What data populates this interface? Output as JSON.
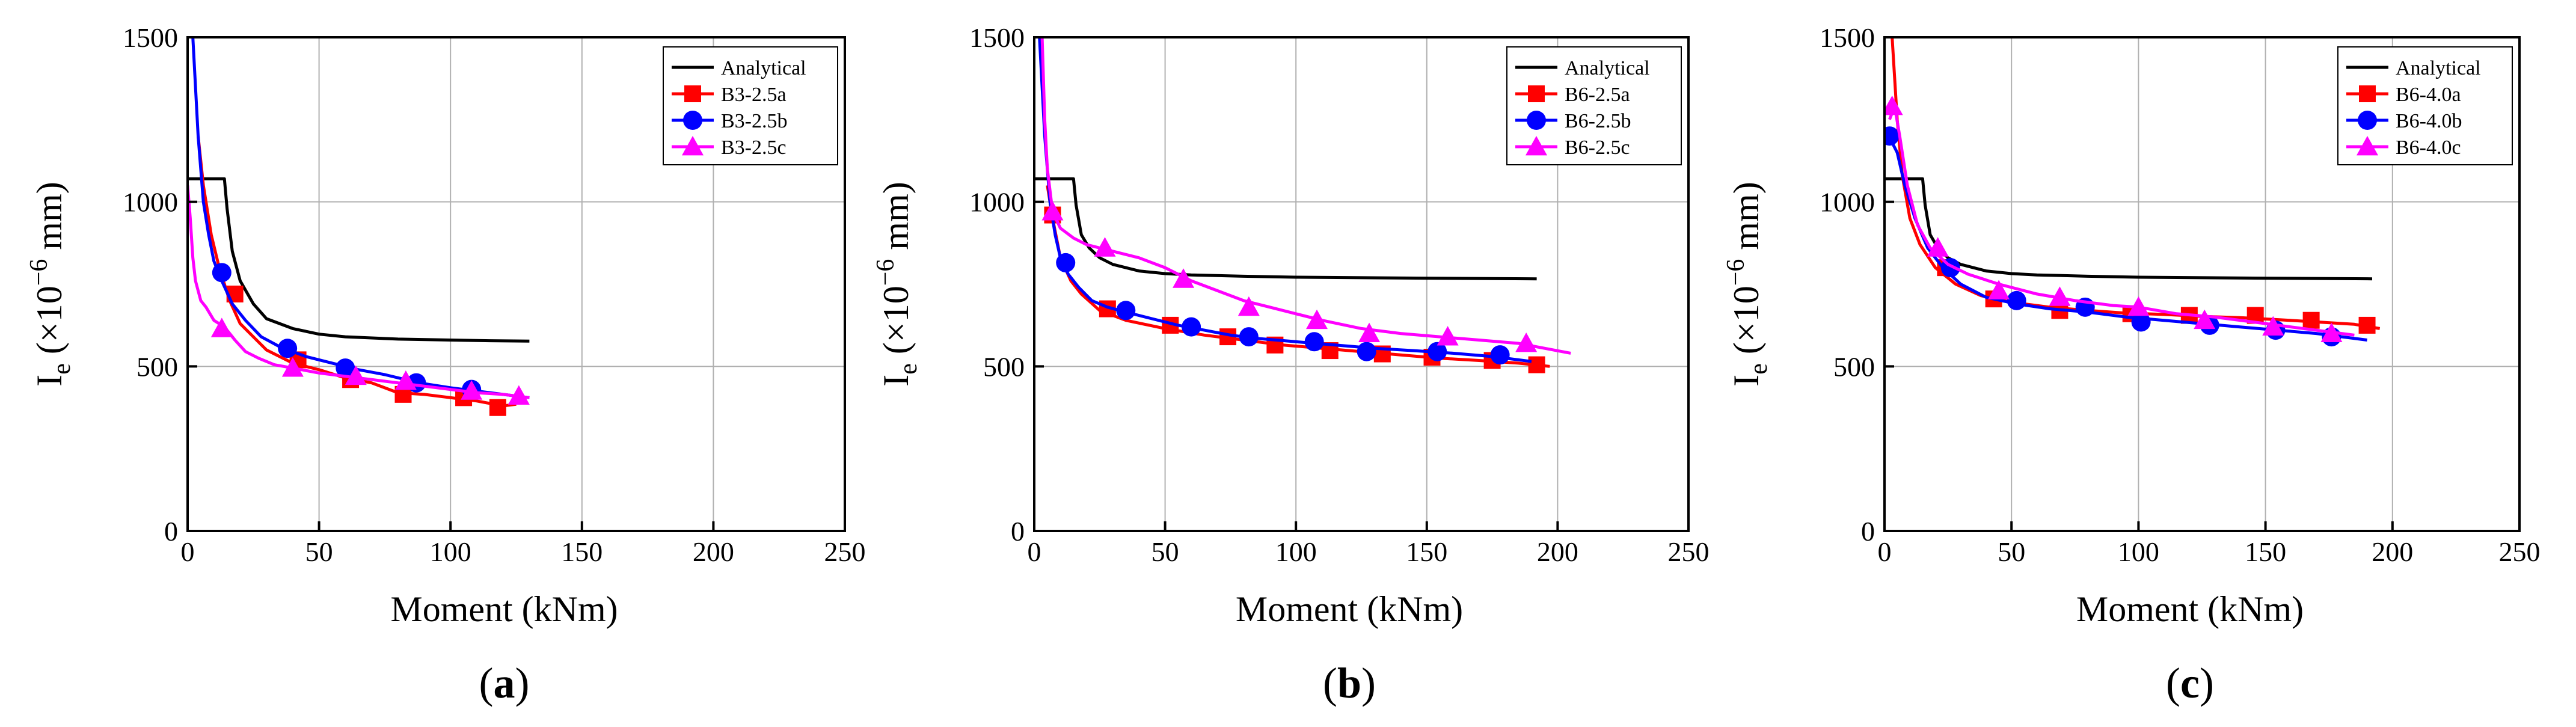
{
  "chart_data": [
    {
      "type": "line",
      "panel_label": "(a)",
      "panel_letter": "a",
      "xlabel": "Moment (kNm)",
      "ylabel": "I",
      "ylabel_sub": "e",
      "ylabel_rest": " (×10",
      "ylabel_sup": "−6",
      "ylabel_unit": " mm)",
      "xlim": [
        0,
        250
      ],
      "ylim": [
        0,
        1500
      ],
      "xticks": [
        0,
        50,
        100,
        150,
        200,
        250
      ],
      "yticks": [
        0,
        500,
        1000,
        1500
      ],
      "grid": true,
      "legend_position": "top-right",
      "series": [
        {
          "name": "Analytical",
          "color": "#000000",
          "marker": "none",
          "x": [
            0,
            14,
            15,
            17,
            20,
            25,
            30,
            40,
            50,
            60,
            80,
            100,
            115,
            130
          ],
          "y": [
            1070,
            1070,
            980,
            850,
            760,
            690,
            645,
            615,
            598,
            590,
            583,
            580,
            578,
            577
          ]
        },
        {
          "name": "B3-2.5a",
          "color": "#ff0000",
          "marker": "square",
          "x": [
            4,
            6,
            9,
            12,
            16,
            20,
            25,
            30,
            40,
            50,
            60,
            70,
            80,
            90,
            100,
            110,
            120,
            125
          ],
          "y": [
            1200,
            1050,
            900,
            800,
            700,
            630,
            590,
            550,
            510,
            490,
            465,
            450,
            420,
            415,
            405,
            395,
            380,
            385
          ],
          "marker_x": [
            18,
            42,
            62,
            82,
            105,
            118
          ],
          "marker_y": [
            720,
            520,
            460,
            415,
            405,
            375
          ]
        },
        {
          "name": "B3-2.5b",
          "color": "#0000ff",
          "marker": "circle",
          "x": [
            2,
            4,
            6,
            8,
            10,
            13,
            17,
            22,
            28,
            35,
            45,
            55,
            65,
            75,
            88,
            100,
            110,
            120,
            130
          ],
          "y": [
            1500,
            1200,
            1000,
            900,
            820,
            760,
            690,
            640,
            590,
            560,
            530,
            510,
            490,
            475,
            450,
            435,
            425,
            415,
            405
          ],
          "marker_x": [
            13,
            38,
            60,
            87,
            108
          ],
          "marker_y": [
            785,
            555,
            495,
            450,
            430
          ]
        },
        {
          "name": "B3-2.5c",
          "color": "#ff00ff",
          "marker": "triangle",
          "x": [
            0,
            1,
            2,
            3,
            5,
            7,
            10,
            14,
            18,
            22,
            27,
            33,
            40,
            50,
            60,
            70,
            80,
            90,
            100,
            110,
            120,
            130
          ],
          "y": [
            1050,
            950,
            830,
            760,
            700,
            680,
            640,
            620,
            580,
            545,
            525,
            505,
            495,
            480,
            470,
            460,
            450,
            440,
            430,
            420,
            415,
            405
          ],
          "marker_x": [
            13,
            40,
            64,
            83,
            108,
            126
          ],
          "marker_y": [
            615,
            495,
            470,
            455,
            425,
            410
          ]
        }
      ]
    },
    {
      "type": "line",
      "panel_label": "(b)",
      "panel_letter": "b",
      "xlabel": "Moment (kNm)",
      "ylabel": "I",
      "ylabel_sub": "e",
      "ylabel_rest": " (×10",
      "ylabel_sup": "−6",
      "ylabel_unit": " mm)",
      "xlim": [
        0,
        250
      ],
      "ylim": [
        0,
        1500
      ],
      "xticks": [
        0,
        50,
        100,
        150,
        200,
        250
      ],
      "yticks": [
        0,
        500,
        1000,
        1500
      ],
      "grid": true,
      "legend_position": "top-right",
      "series": [
        {
          "name": "Analytical",
          "color": "#000000",
          "marker": "none",
          "x": [
            0,
            15,
            16,
            18,
            21,
            25,
            30,
            40,
            50,
            60,
            80,
            100,
            150,
            192
          ],
          "y": [
            1070,
            1070,
            990,
            900,
            860,
            830,
            810,
            790,
            782,
            778,
            774,
            771,
            768,
            766
          ]
        },
        {
          "name": "B6-2.5a",
          "color": "#ff0000",
          "marker": "square",
          "x": [
            5,
            7,
            10,
            14,
            18,
            25,
            35,
            50,
            65,
            80,
            95,
            110,
            125,
            140,
            155,
            170,
            185,
            197
          ],
          "y": [
            1050,
            950,
            830,
            760,
            720,
            670,
            640,
            615,
            595,
            580,
            565,
            555,
            545,
            535,
            525,
            518,
            510,
            500
          ],
          "marker_x": [
            7,
            28,
            52,
            74,
            92,
            113,
            133,
            152,
            175,
            192
          ],
          "marker_y": [
            960,
            675,
            625,
            590,
            565,
            548,
            538,
            528,
            518,
            505
          ]
        },
        {
          "name": "B6-2.5b",
          "color": "#0000ff",
          "marker": "circle",
          "x": [
            2,
            4,
            6,
            8,
            10,
            13,
            17,
            22,
            28,
            35,
            45,
            55,
            65,
            75,
            85,
            100,
            115,
            130,
            145,
            160,
            175,
            190
          ],
          "y": [
            1500,
            1200,
            1000,
            900,
            830,
            780,
            740,
            700,
            680,
            665,
            645,
            625,
            610,
            595,
            585,
            575,
            565,
            555,
            548,
            540,
            530,
            515
          ],
          "marker_x": [
            12,
            35,
            60,
            82,
            107,
            127,
            154,
            178
          ],
          "marker_y": [
            815,
            670,
            620,
            590,
            575,
            545,
            545,
            535
          ]
        },
        {
          "name": "B6-2.5c",
          "color": "#ff00ff",
          "marker": "triangle",
          "x": [
            3,
            4,
            5,
            7,
            10,
            15,
            20,
            30,
            40,
            50,
            60,
            70,
            80,
            90,
            100,
            110,
            125,
            140,
            155,
            170,
            185,
            195,
            205
          ],
          "y": [
            1500,
            1250,
            1100,
            970,
            920,
            890,
            870,
            850,
            830,
            800,
            760,
            730,
            700,
            680,
            660,
            640,
            615,
            600,
            590,
            580,
            570,
            555,
            540
          ],
          "marker_x": [
            7,
            27,
            57,
            82,
            108,
            128,
            158,
            188
          ],
          "marker_y": [
            970,
            860,
            765,
            680,
            640,
            600,
            590,
            570
          ]
        }
      ]
    },
    {
      "type": "line",
      "panel_label": "(c)",
      "panel_letter": "c",
      "xlabel": "Moment (kNm)",
      "ylabel": "I",
      "ylabel_sub": "e",
      "ylabel_rest": " (×10",
      "ylabel_sup": "−6",
      "ylabel_unit": " mm)",
      "xlim": [
        0,
        250
      ],
      "ylim": [
        0,
        1500
      ],
      "xticks": [
        0,
        50,
        100,
        150,
        200,
        250
      ],
      "yticks": [
        0,
        500,
        1000,
        1500
      ],
      "grid": true,
      "legend_position": "top-right",
      "series": [
        {
          "name": "Analytical",
          "color": "#000000",
          "marker": "none",
          "x": [
            0,
            15,
            16,
            18,
            21,
            25,
            30,
            40,
            50,
            60,
            80,
            100,
            150,
            192
          ],
          "y": [
            1070,
            1070,
            990,
            900,
            860,
            830,
            810,
            790,
            782,
            778,
            774,
            771,
            768,
            766
          ]
        },
        {
          "name": "B6-4.0a",
          "color": "#ff0000",
          "marker": "square",
          "x": [
            3,
            5,
            7,
            10,
            14,
            20,
            28,
            38,
            50,
            65,
            80,
            95,
            110,
            125,
            140,
            155,
            170,
            185,
            195
          ],
          "y": [
            1500,
            1250,
            1080,
            950,
            870,
            800,
            750,
            715,
            695,
            680,
            670,
            662,
            658,
            652,
            648,
            642,
            635,
            628,
            615
          ],
          "marker_x": [
            24,
            43,
            69,
            97,
            120,
            146,
            168,
            190
          ],
          "marker_y": [
            800,
            705,
            670,
            660,
            655,
            655,
            640,
            625
          ]
        },
        {
          "name": "B6-4.0b",
          "color": "#0000ff",
          "marker": "circle",
          "x": [
            1,
            3,
            5,
            8,
            12,
            17,
            23,
            30,
            40,
            52,
            65,
            80,
            95,
            110,
            125,
            140,
            155,
            170,
            190
          ],
          "y": [
            1200,
            1180,
            1150,
            1050,
            950,
            860,
            800,
            750,
            710,
            690,
            675,
            665,
            650,
            640,
            630,
            620,
            610,
            600,
            580
          ],
          "marker_x": [
            2,
            26,
            52,
            79,
            101,
            128,
            154,
            176
          ],
          "marker_y": [
            1200,
            800,
            700,
            680,
            635,
            625,
            610,
            590
          ]
        },
        {
          "name": "B6-4.0c",
          "color": "#ff00ff",
          "marker": "triangle",
          "x": [
            2,
            4,
            6,
            9,
            13,
            18,
            25,
            33,
            45,
            60,
            75,
            90,
            100,
            115,
            130,
            145,
            160,
            175,
            185
          ],
          "y": [
            1250,
            1290,
            1200,
            1050,
            930,
            860,
            810,
            780,
            750,
            720,
            700,
            685,
            680,
            660,
            650,
            635,
            620,
            605,
            595
          ],
          "marker_x": [
            3,
            21,
            45,
            69,
            100,
            126,
            153,
            176
          ],
          "marker_y": [
            1290,
            860,
            730,
            710,
            680,
            640,
            620,
            600
          ]
        }
      ]
    }
  ]
}
